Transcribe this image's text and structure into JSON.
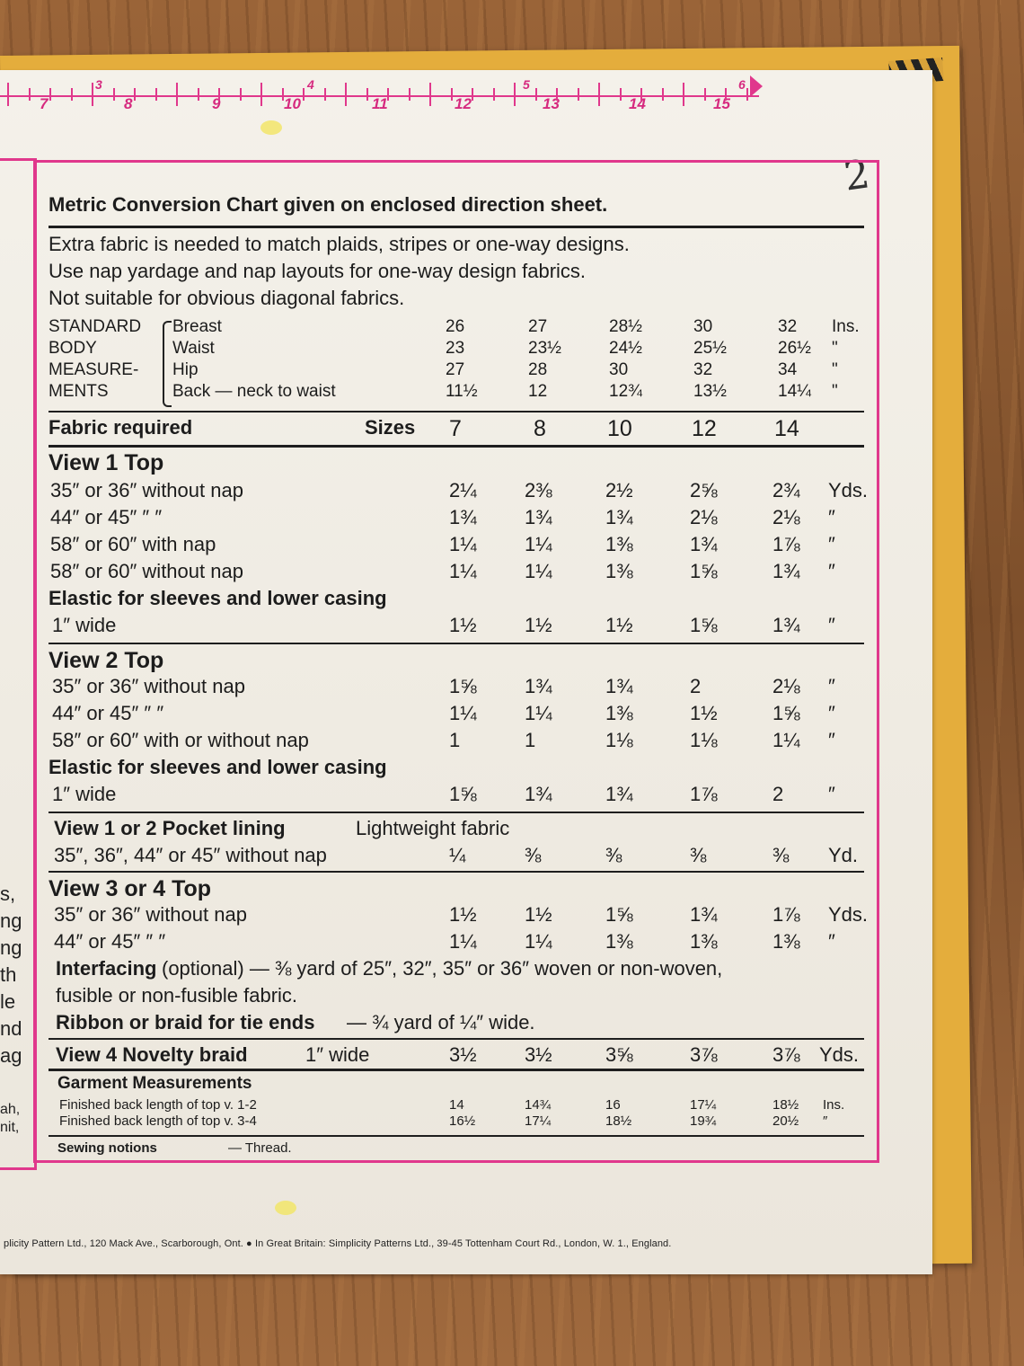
{
  "ruler": {
    "top_numbers": [
      "3",
      "4",
      "5",
      "6"
    ],
    "bottom_numbers": [
      "7",
      "8",
      "9",
      "10",
      "11",
      "12",
      "13",
      "14",
      "15"
    ]
  },
  "page_mark": "2",
  "left_fragments": [
    "s,",
    "ng",
    "ng",
    "th",
    "le",
    "nd",
    "ag",
    "ah,",
    "nit,"
  ],
  "header": {
    "title": "Metric Conversion Chart given on enclosed direction sheet.",
    "notes": [
      "Extra fabric is needed to match plaids, stripes or one-way designs.",
      "Use nap yardage and nap layouts for one-way design fabrics.",
      "Not suitable for obvious diagonal fabrics."
    ]
  },
  "body_measurements": {
    "group_label": [
      "STANDARD",
      "BODY",
      "MEASURE-",
      "MENTS"
    ],
    "rows": [
      {
        "label": "Breast",
        "values": [
          "26",
          "27",
          "28½",
          "30",
          "32"
        ],
        "unit": "Ins."
      },
      {
        "label": "Waist",
        "values": [
          "23",
          "23½",
          "24½",
          "25½",
          "26½"
        ],
        "unit": "\""
      },
      {
        "label": "Hip",
        "values": [
          "27",
          "28",
          "30",
          "32",
          "34"
        ],
        "unit": "\""
      },
      {
        "label": "Back — neck to waist",
        "values": [
          "11½",
          "12",
          "12¾",
          "13½",
          "14¼"
        ],
        "unit": "\""
      }
    ]
  },
  "fabric_header": {
    "label": "Fabric required",
    "sizes_label": "Sizes",
    "sizes": [
      "7",
      "8",
      "10",
      "12",
      "14"
    ]
  },
  "view1": {
    "title": "View 1   Top",
    "rows": [
      {
        "label": "35″ or 36″ without nap",
        "values": [
          "2¼",
          "2⅜",
          "2½",
          "2⅝",
          "2¾"
        ],
        "unit": "Yds."
      },
      {
        "label": "44″ or 45″      ″      ″",
        "values": [
          "1¾",
          "1¾",
          "1¾",
          "2⅛",
          "2⅛"
        ],
        "unit": "″"
      },
      {
        "label": "58″ or 60″ with nap",
        "values": [
          "1¼",
          "1¼",
          "1⅜",
          "1¾",
          "1⅞"
        ],
        "unit": "″"
      },
      {
        "label": "58″ or 60″ without nap",
        "values": [
          "1¼",
          "1¼",
          "1⅜",
          "1⅝",
          "1¾"
        ],
        "unit": "″"
      }
    ],
    "elastic_title": "Elastic for sleeves and lower casing",
    "elastic": {
      "label": "1″ wide",
      "values": [
        "1½",
        "1½",
        "1½",
        "1⅝",
        "1¾"
      ],
      "unit": "″"
    }
  },
  "view2": {
    "title": "View 2   Top",
    "rows": [
      {
        "label": "35″ or 36″ without nap",
        "values": [
          "1⅝",
          "1¾",
          "1¾",
          "2",
          "2⅛"
        ],
        "unit": "″"
      },
      {
        "label": "44″ or 45″      ″      ″",
        "values": [
          "1¼",
          "1¼",
          "1⅜",
          "1½",
          "1⅝"
        ],
        "unit": "″"
      },
      {
        "label": "58″ or 60″ with or without nap",
        "values": [
          "1",
          "1",
          "1⅛",
          "1⅛",
          "1¼"
        ],
        "unit": "″"
      }
    ],
    "elastic_title": "Elastic for sleeves and lower casing",
    "elastic": {
      "label": "1″ wide",
      "values": [
        "1⅝",
        "1¾",
        "1¾",
        "1⅞",
        "2"
      ],
      "unit": "″"
    }
  },
  "pocket": {
    "title": "View 1 or 2  Pocket lining",
    "subtitle": "Lightweight fabric",
    "row": {
      "label": "35″, 36″, 44″ or 45″ without nap",
      "values": [
        "¼",
        "⅜",
        "⅜",
        "⅜",
        "⅜"
      ],
      "unit": "Yd."
    }
  },
  "view34": {
    "title": "View 3 or 4   Top",
    "rows": [
      {
        "label": "35″ or 36″ without nap",
        "values": [
          "1½",
          "1½",
          "1⅝",
          "1¾",
          "1⅞"
        ],
        "unit": "Yds."
      },
      {
        "label": "44″ or 45″      ″      ″",
        "values": [
          "1¼",
          "1¼",
          "1⅜",
          "1⅜",
          "1⅜"
        ],
        "unit": "″"
      }
    ],
    "interfacing_label": "Interfacing",
    "interfacing_text": "(optional) — ⅜ yard of 25″, 32″, 35″ or 36″ woven or non-woven,",
    "interfacing_text2": "fusible or non-fusible fabric.",
    "ribbon_label": "Ribbon or braid for tie ends",
    "ribbon_text": "— ¾ yard of ¼″ wide."
  },
  "view4": {
    "label": "View 4  Novelty braid",
    "width": "1″ wide",
    "values": [
      "3½",
      "3½",
      "3⅝",
      "3⅞",
      "3⅞"
    ],
    "unit": "Yds."
  },
  "garment": {
    "title": "Garment Measurements",
    "rows": [
      {
        "label": "Finished back length of top v. 1-2",
        "values": [
          "14",
          "14¾",
          "16",
          "17¼",
          "18½"
        ],
        "unit": "Ins."
      },
      {
        "label": "Finished back length of top v. 3-4",
        "values": [
          "16½",
          "17¼",
          "18½",
          "19¾",
          "20½"
        ],
        "unit": "″"
      }
    ]
  },
  "notions": {
    "label": "Sewing notions",
    "value": "— Thread."
  },
  "footer": "plicity Pattern Ltd., 120 Mack Ave., Scarborough, Ont. ● In Great Britain: Simplicity Patterns Ltd., 39-45 Tottenham Court Rd., London, W. 1., England."
}
